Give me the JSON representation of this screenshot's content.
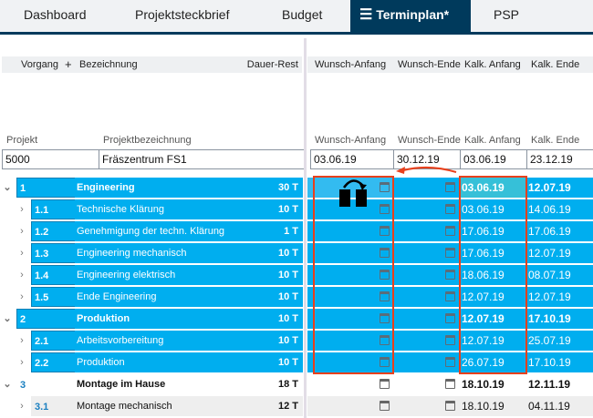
{
  "tabs": [
    {
      "label": "Dashboard"
    },
    {
      "label": "Projektsteckbrief"
    },
    {
      "label": "Budget"
    },
    {
      "label": "Terminplan*",
      "active": true
    },
    {
      "label": "PSP"
    }
  ],
  "header": {
    "vorgang": "Vorgang",
    "plus": "+",
    "bezeichnung": "Bezeichnung",
    "dauer": "Dauer-Rest",
    "wunsch_anfang": "Wunsch-Anfang",
    "wunsch_ende": "Wunsch-Ende",
    "kalk_anfang": "Kalk. Anfang",
    "kalk_ende": "Kalk. Ende"
  },
  "project_header": {
    "projekt": "Projekt",
    "bezeichnung": "Projektbezeichnung",
    "wunsch_anfang": "Wunsch-Anfang",
    "wunsch_ende": "Wunsch-Ende",
    "kalk_anfang": "Kalk. Anfang",
    "kalk_ende": "Kalk. Ende"
  },
  "project": {
    "projekt": "5000",
    "bezeichnung": "Fräszentrum FS1",
    "wunsch_anfang": "03.06.19",
    "wunsch_ende": "30.12.19",
    "kalk_anfang": "03.06.19",
    "kalk_ende": "23.12.19"
  },
  "colors": {
    "selected": "#00aeef",
    "tab_active": "#003a5c",
    "highlight": "#e8401c"
  },
  "rows": [
    {
      "level": 1,
      "num": "1",
      "name": "Engineering",
      "dur": "30 T",
      "kalk_anfang": "03.06.19",
      "kalk_ende": "12.07.19",
      "selected": true,
      "expanded": true
    },
    {
      "level": 2,
      "num": "1.1",
      "name": "Technische Klärung",
      "dur": "10 T",
      "kalk_anfang": "03.06.19",
      "kalk_ende": "14.06.19",
      "selected": true
    },
    {
      "level": 2,
      "num": "1.2",
      "name": "Genehmigung der techn. Klärung",
      "dur": "1 T",
      "kalk_anfang": "17.06.19",
      "kalk_ende": "17.06.19",
      "selected": true
    },
    {
      "level": 2,
      "num": "1.3",
      "name": "Engineering mechanisch",
      "dur": "10 T",
      "kalk_anfang": "17.06.19",
      "kalk_ende": "12.07.19",
      "selected": true
    },
    {
      "level": 2,
      "num": "1.4",
      "name": "Engineering elektrisch",
      "dur": "10 T",
      "kalk_anfang": "18.06.19",
      "kalk_ende": "08.07.19",
      "selected": true
    },
    {
      "level": 2,
      "num": "1.5",
      "name": "Ende Engineering",
      "dur": "10 T",
      "kalk_anfang": "12.07.19",
      "kalk_ende": "12.07.19",
      "selected": true
    },
    {
      "level": 1,
      "num": "2",
      "name": "Produktion",
      "dur": "10 T",
      "kalk_anfang": "12.07.19",
      "kalk_ende": "17.10.19",
      "selected": true,
      "expanded": true
    },
    {
      "level": 2,
      "num": "2.1",
      "name": "Arbeitsvorbereitung",
      "dur": "10 T",
      "kalk_anfang": "12.07.19",
      "kalk_ende": "25.07.19",
      "selected": true
    },
    {
      "level": 2,
      "num": "2.2",
      "name": "Produktion",
      "dur": "10 T",
      "kalk_anfang": "26.07.19",
      "kalk_ende": "17.10.19",
      "selected": true
    },
    {
      "level": 1,
      "num": "3",
      "name": "Montage im Hause",
      "dur": "18 T",
      "kalk_anfang": "18.10.19",
      "kalk_ende": "12.11.19",
      "selected": false,
      "expanded": true
    },
    {
      "level": 2,
      "num": "3.1",
      "name": "Montage mechanisch",
      "dur": "12 T",
      "kalk_anfang": "18.10.19",
      "kalk_ende": "04.11.19",
      "selected": false,
      "alt": true
    }
  ]
}
